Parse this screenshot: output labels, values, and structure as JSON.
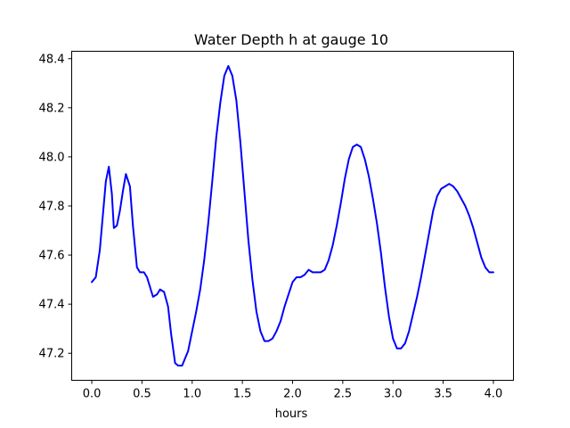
{
  "chart_data": {
    "type": "line",
    "title": "Water Depth h at gauge 10",
    "xlabel": "hours",
    "ylabel": "",
    "xlim": [
      -0.2,
      4.2
    ],
    "ylim": [
      47.09,
      48.43
    ],
    "xticks": [
      0.0,
      0.5,
      1.0,
      1.5,
      2.0,
      2.5,
      3.0,
      3.5,
      4.0
    ],
    "xtick_labels": [
      "0.0",
      "0.5",
      "1.0",
      "1.5",
      "2.0",
      "2.5",
      "3.0",
      "3.5",
      "4.0"
    ],
    "yticks": [
      47.2,
      47.4,
      47.6,
      47.8,
      48.0,
      48.2,
      48.4
    ],
    "ytick_labels": [
      "47.2",
      "47.4",
      "47.6",
      "47.8",
      "48.0",
      "48.2",
      "48.4"
    ],
    "grid": false,
    "series": [
      {
        "color": "#0000ff",
        "x": [
          0.0,
          0.04,
          0.08,
          0.11,
          0.14,
          0.17,
          0.2,
          0.22,
          0.25,
          0.28,
          0.31,
          0.34,
          0.38,
          0.41,
          0.45,
          0.48,
          0.52,
          0.55,
          0.58,
          0.61,
          0.65,
          0.68,
          0.72,
          0.76,
          0.79,
          0.83,
          0.86,
          0.9,
          0.93,
          0.96,
          1.0,
          1.04,
          1.08,
          1.12,
          1.16,
          1.2,
          1.24,
          1.28,
          1.32,
          1.36,
          1.4,
          1.44,
          1.48,
          1.52,
          1.56,
          1.6,
          1.64,
          1.68,
          1.72,
          1.76,
          1.8,
          1.84,
          1.88,
          1.92,
          1.96,
          2.0,
          2.04,
          2.08,
          2.12,
          2.16,
          2.2,
          2.24,
          2.28,
          2.32,
          2.36,
          2.4,
          2.44,
          2.48,
          2.52,
          2.56,
          2.6,
          2.64,
          2.68,
          2.72,
          2.76,
          2.8,
          2.84,
          2.88,
          2.92,
          2.96,
          3.0,
          3.04,
          3.08,
          3.12,
          3.16,
          3.2,
          3.24,
          3.28,
          3.32,
          3.36,
          3.4,
          3.44,
          3.48,
          3.52,
          3.56,
          3.6,
          3.64,
          3.68,
          3.72,
          3.76,
          3.8,
          3.84,
          3.88,
          3.92,
          3.96,
          4.0
        ],
        "y": [
          47.49,
          47.51,
          47.62,
          47.76,
          47.9,
          47.96,
          47.85,
          47.71,
          47.72,
          47.78,
          47.86,
          47.93,
          47.88,
          47.72,
          47.55,
          47.53,
          47.53,
          47.51,
          47.47,
          47.43,
          47.44,
          47.46,
          47.45,
          47.39,
          47.28,
          47.16,
          47.15,
          47.15,
          47.18,
          47.21,
          47.29,
          47.37,
          47.46,
          47.58,
          47.73,
          47.9,
          48.08,
          48.22,
          48.33,
          48.37,
          48.33,
          48.23,
          48.06,
          47.86,
          47.66,
          47.5,
          47.37,
          47.29,
          47.25,
          47.25,
          47.26,
          47.29,
          47.33,
          47.39,
          47.44,
          47.49,
          47.51,
          47.51,
          47.52,
          47.54,
          47.53,
          47.53,
          47.53,
          47.54,
          47.58,
          47.64,
          47.72,
          47.81,
          47.91,
          47.99,
          48.04,
          48.05,
          48.04,
          47.99,
          47.92,
          47.83,
          47.73,
          47.61,
          47.47,
          47.35,
          47.26,
          47.22,
          47.22,
          47.24,
          47.29,
          47.36,
          47.43,
          47.51,
          47.6,
          47.69,
          47.78,
          47.84,
          47.87,
          47.88,
          47.89,
          47.88,
          47.86,
          47.83,
          47.8,
          47.76,
          47.71,
          47.65,
          47.59,
          47.55,
          47.53,
          47.53
        ]
      }
    ]
  }
}
